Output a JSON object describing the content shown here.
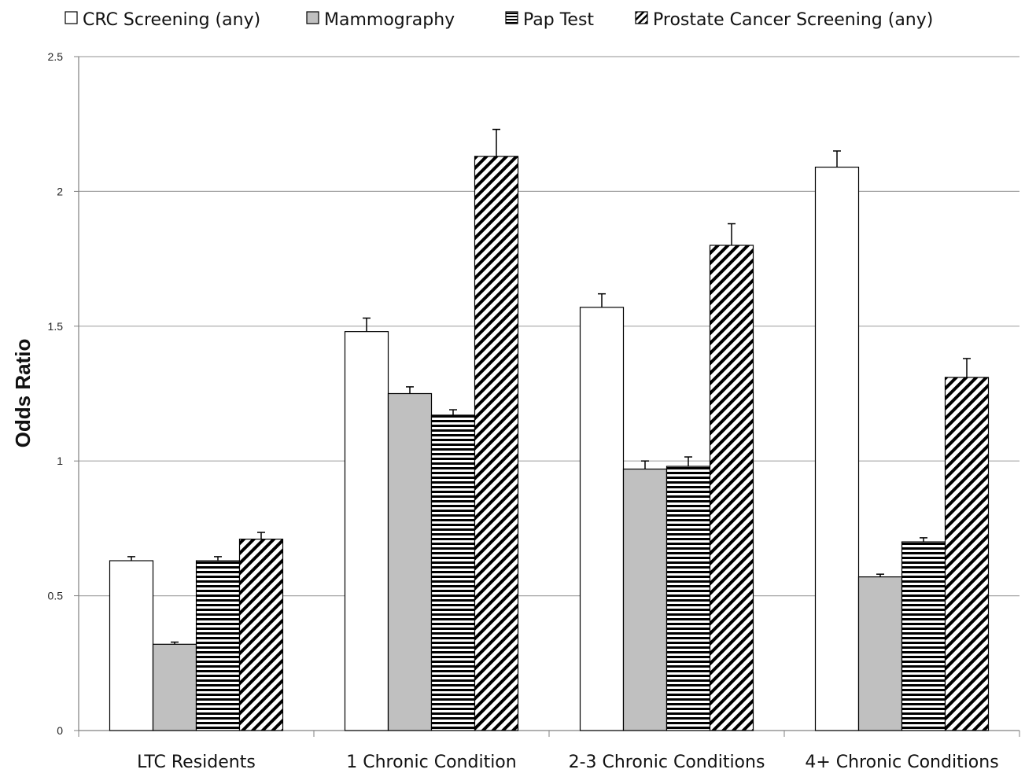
{
  "chart_data": {
    "type": "bar",
    "title": "",
    "xlabel": "",
    "ylabel": "Odds Ratio",
    "ylim": [
      0,
      2.5
    ],
    "yticks": [
      "0",
      "0.5",
      "1",
      "1.5",
      "2",
      "2.5"
    ],
    "grid": true,
    "legend_position": "top",
    "categories": [
      "LTC Residents",
      "1 Chronic Condition",
      "2-3 Chronic Conditions",
      "4+ Chronic Conditions"
    ],
    "series": [
      {
        "name": "CRC Screening (any)",
        "pattern": "white",
        "values": [
          0.63,
          1.48,
          1.57,
          2.09
        ],
        "errors": [
          0.015,
          0.05,
          0.05,
          0.06
        ]
      },
      {
        "name": "Mammography",
        "pattern": "gray",
        "values": [
          0.32,
          1.25,
          0.97,
          0.57
        ],
        "errors": [
          0.008,
          0.025,
          0.03,
          0.01
        ]
      },
      {
        "name": "Pap Test",
        "pattern": "horizontal-stripes",
        "values": [
          0.63,
          1.17,
          0.98,
          0.7
        ],
        "errors": [
          0.015,
          0.02,
          0.035,
          0.015
        ]
      },
      {
        "name": "Prostate Cancer Screening (any)",
        "pattern": "diagonal-stripes",
        "values": [
          0.71,
          2.13,
          1.8,
          1.31
        ],
        "errors": [
          0.025,
          0.1,
          0.08,
          0.07
        ]
      }
    ],
    "colors": {
      "white": "#ffffff",
      "gray": "#c0c0c0",
      "stroke": "#000000",
      "grid": "#a6a6a6"
    }
  }
}
